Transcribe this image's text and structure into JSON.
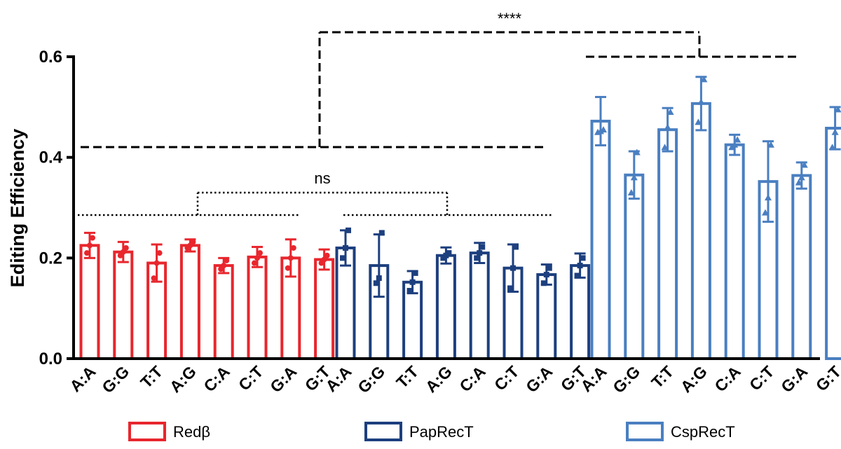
{
  "chart_data": {
    "type": "bar",
    "ylabel": "Editing Efficiency",
    "xlabel": "",
    "ylim": [
      0,
      0.6
    ],
    "yticks": [
      "0.0",
      "0.2",
      "0.4",
      "0.6"
    ],
    "categories": [
      "A:A",
      "G:G",
      "T:T",
      "A:G",
      "C:A",
      "C:T",
      "G:A",
      "G:T"
    ],
    "series": [
      {
        "name": "Redβ",
        "color": "#e8262d",
        "values": [
          0.225,
          0.212,
          0.19,
          0.225,
          0.185,
          0.202,
          0.2,
          0.197
        ],
        "errors": [
          0.025,
          0.02,
          0.037,
          0.012,
          0.015,
          0.02,
          0.037,
          0.02
        ],
        "points": [
          [
            0.21,
            0.225,
            0.24
          ],
          [
            0.205,
            0.212,
            0.22
          ],
          [
            0.16,
            0.19,
            0.21
          ],
          [
            0.22,
            0.225,
            0.232
          ],
          [
            0.178,
            0.185,
            0.195
          ],
          [
            0.19,
            0.2,
            0.21
          ],
          [
            0.18,
            0.2,
            0.22
          ],
          [
            0.19,
            0.197,
            0.205
          ]
        ]
      },
      {
        "name": "PapRecT",
        "color": "#1d3f7e",
        "values": [
          0.22,
          0.185,
          0.152,
          0.205,
          0.21,
          0.18,
          0.167,
          0.185
        ],
        "errors": [
          0.035,
          0.062,
          0.022,
          0.016,
          0.02,
          0.047,
          0.02,
          0.024
        ],
        "points": [
          [
            0.2,
            0.22,
            0.255
          ],
          [
            0.15,
            0.16,
            0.25
          ],
          [
            0.135,
            0.152,
            0.17
          ],
          [
            0.2,
            0.205,
            0.21
          ],
          [
            0.2,
            0.21,
            0.222
          ],
          [
            0.14,
            0.18,
            0.222
          ],
          [
            0.15,
            0.167,
            0.18
          ],
          [
            0.165,
            0.185,
            0.2
          ]
        ]
      },
      {
        "name": "CspRecT",
        "color": "#4a7fc1",
        "values": [
          0.472,
          0.365,
          0.455,
          0.507,
          0.425,
          0.352,
          0.364,
          0.458
        ],
        "errors": [
          0.048,
          0.047,
          0.043,
          0.053,
          0.02,
          0.08,
          0.026,
          0.042
        ],
        "points": [
          [
            0.45,
            0.452,
            0.455
          ],
          [
            0.33,
            0.36,
            0.41
          ],
          [
            0.42,
            0.46,
            0.49
          ],
          [
            0.47,
            0.51,
            0.555
          ],
          [
            0.42,
            0.425,
            0.435
          ],
          [
            0.29,
            0.32,
            0.425
          ],
          [
            0.35,
            0.36,
            0.385
          ],
          [
            0.42,
            0.45,
            0.495
          ]
        ]
      }
    ],
    "annotations": [
      {
        "text": "****",
        "from_group": 0,
        "to_group": 2,
        "style": "dashed"
      },
      {
        "text": "ns",
        "from_group": 0,
        "to_group": 1,
        "style": "dotted"
      }
    ],
    "legend_position": "bottom"
  }
}
